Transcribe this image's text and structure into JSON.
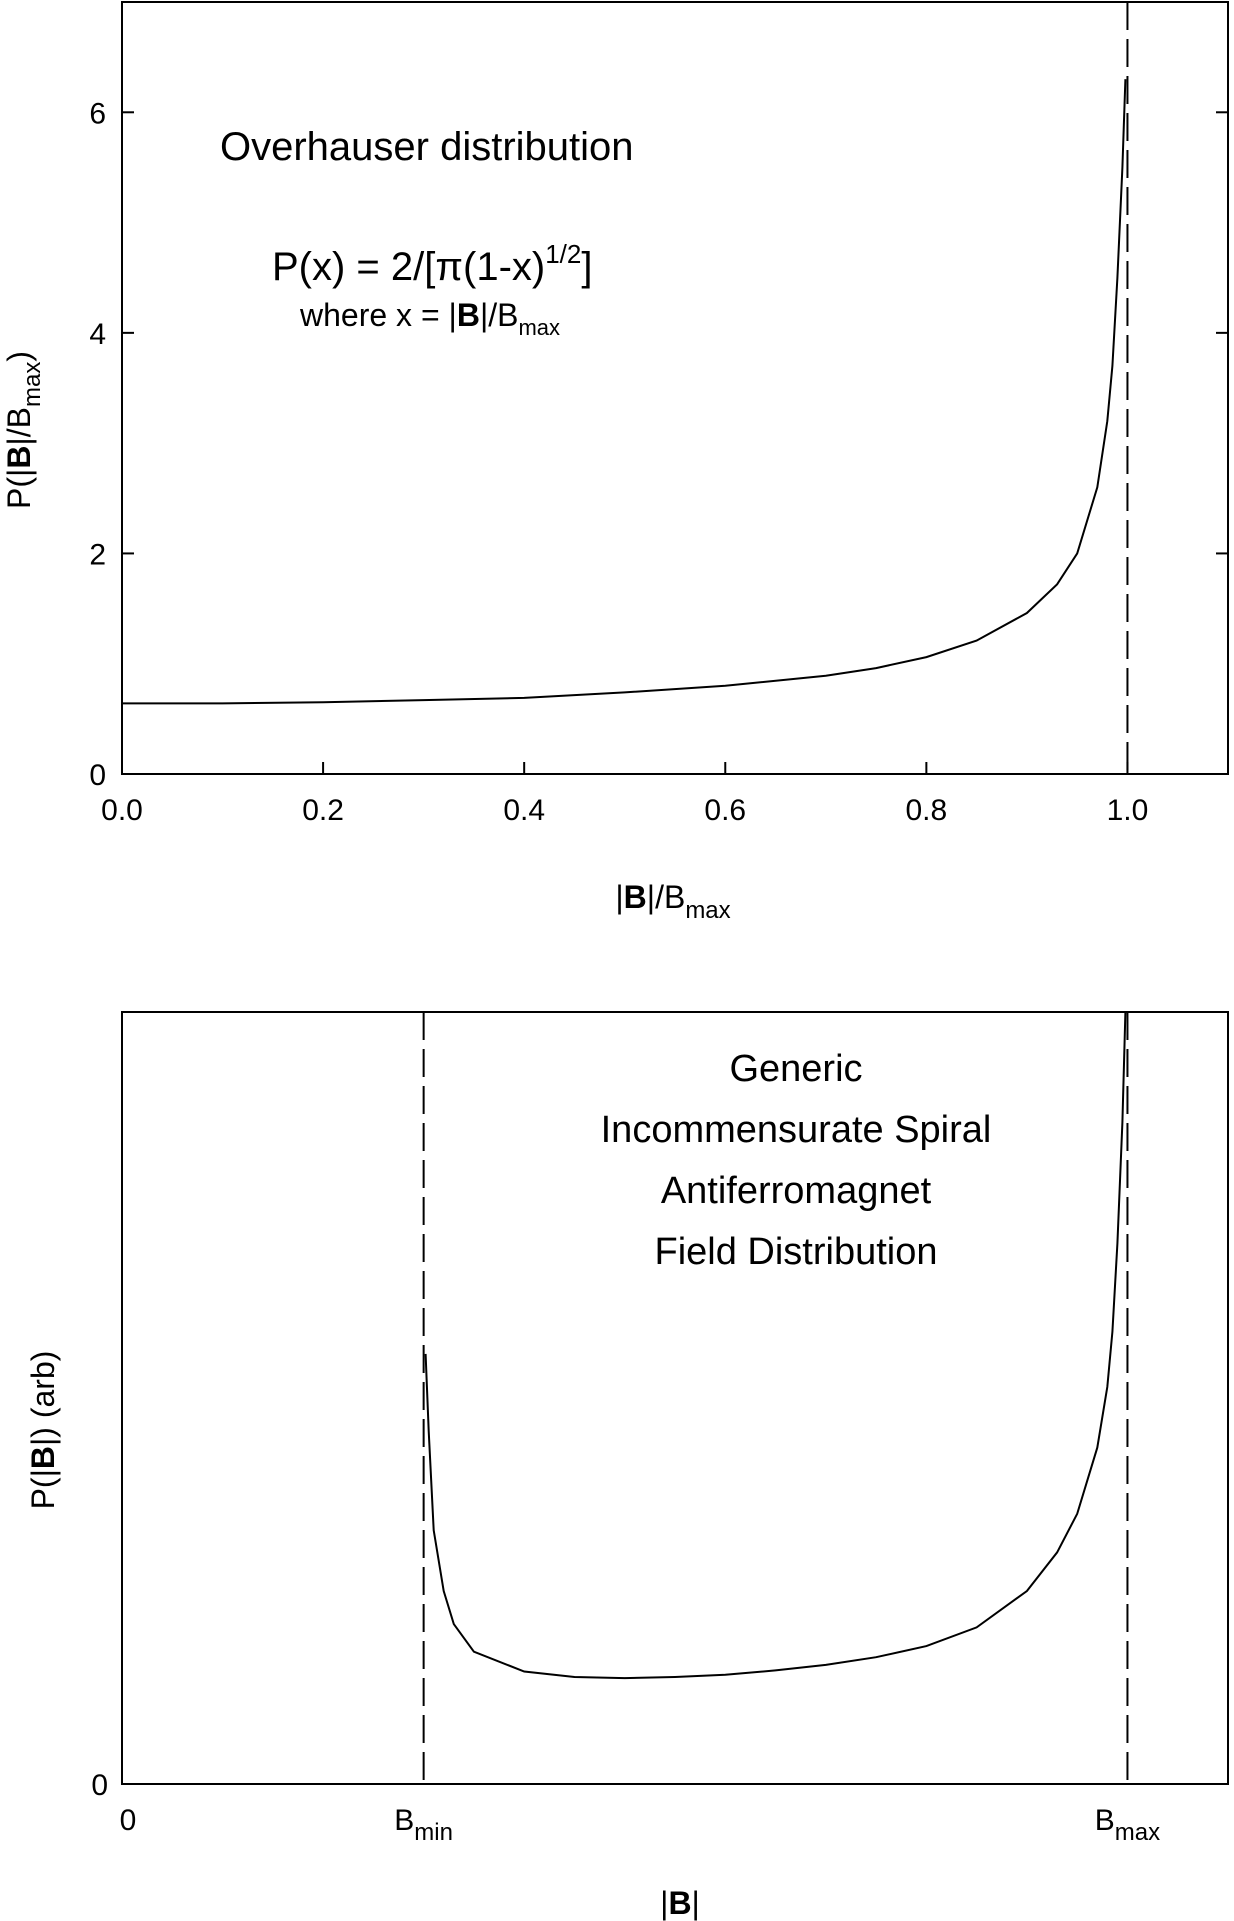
{
  "chart_data": [
    {
      "type": "line",
      "title": "",
      "xlabel": {
        "pre": "|",
        "bold": "B",
        "post": "|/B",
        "sub": "max"
      },
      "ylabel": {
        "pre": "P(|",
        "bold": "B",
        "post": "|/B",
        "sub": "max",
        "close": ")"
      },
      "xlim": [
        0,
        1.1
      ],
      "ylim": [
        0,
        7
      ],
      "xticks": [
        0.0,
        0.2,
        0.4,
        0.6,
        0.8,
        1.0
      ],
      "xtick_labels": [
        "0.0",
        "0.2",
        "0.4",
        "0.6",
        "0.8",
        "1.0"
      ],
      "yticks": [
        0,
        2,
        4,
        6
      ],
      "ytick_labels": [
        "0",
        "2",
        "4",
        "6"
      ],
      "grid": false,
      "series": [
        {
          "x": [
            0.0,
            0.1,
            0.2,
            0.3,
            0.4,
            0.5,
            0.6,
            0.7,
            0.75,
            0.8,
            0.85,
            0.9,
            0.93,
            0.95,
            0.97,
            0.98,
            0.985,
            0.99,
            0.995,
            0.998
          ],
          "y": [
            0.64,
            0.64,
            0.65,
            0.67,
            0.69,
            0.74,
            0.8,
            0.89,
            0.96,
            1.06,
            1.21,
            1.46,
            1.72,
            2.0,
            2.6,
            3.2,
            3.7,
            4.5,
            5.5,
            6.3
          ]
        }
      ],
      "vlines": [
        {
          "x": 1.0,
          "style": "dashed"
        }
      ],
      "annotations": {
        "name": "Overhauser distribution",
        "formula": {
          "lhs": "P(x) = 2/[",
          "pi": "π",
          "mid": "(1-x)",
          "sup": "1/2",
          "end": "]"
        },
        "where": {
          "pre": "where x = |",
          "bold": "B",
          "post": "|/B",
          "sub": "max"
        }
      }
    },
    {
      "type": "line",
      "title": "",
      "xlabel": {
        "pre": "|",
        "bold": "B",
        "post": "|"
      },
      "ylabel": {
        "pre": "P(|",
        "bold": "B",
        "post": "|)  (arb)"
      },
      "xlim": [
        0,
        1.1
      ],
      "ylim": [
        0,
        7
      ],
      "xtick_labels": [
        {
          "x": 0.0,
          "main": "0",
          "sub": ""
        },
        {
          "x": 0.3,
          "main": "B",
          "sub": "min"
        },
        {
          "x": 1.0,
          "main": "B",
          "sub": "max"
        }
      ],
      "yticks": [
        0
      ],
      "ytick_labels": [
        "0"
      ],
      "grid": false,
      "series": [
        {
          "x": [
            0.302,
            0.305,
            0.31,
            0.32,
            0.33,
            0.35,
            0.4,
            0.45,
            0.5,
            0.55,
            0.6,
            0.65,
            0.7,
            0.75,
            0.8,
            0.85,
            0.9,
            0.93,
            0.95,
            0.97,
            0.98,
            0.985,
            0.99,
            0.995,
            0.998
          ],
          "y": [
            3.9,
            3.2,
            2.3,
            1.75,
            1.45,
            1.2,
            1.02,
            0.97,
            0.96,
            0.97,
            0.99,
            1.03,
            1.08,
            1.15,
            1.25,
            1.42,
            1.75,
            2.1,
            2.45,
            3.05,
            3.6,
            4.1,
            4.9,
            6.0,
            7.0
          ]
        }
      ],
      "vlines": [
        {
          "x": 0.3,
          "style": "dashed"
        },
        {
          "x": 1.0,
          "style": "dashed"
        }
      ],
      "annotations": {
        "lines": [
          "Generic",
          "Incommensurate Spiral",
          "Antiferromagnet",
          "Field Distribution"
        ]
      }
    }
  ]
}
